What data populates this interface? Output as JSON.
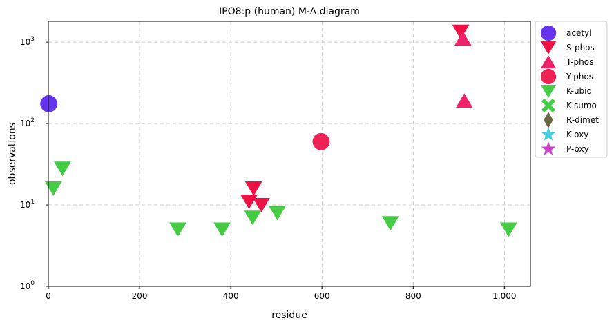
{
  "chart_data": {
    "type": "scatter",
    "title": "IPO8:p (human) M-A diagram",
    "xlabel": "residue",
    "ylabel": "observations",
    "xlim": [
      0,
      1057
    ],
    "ylim": [
      1,
      1800
    ],
    "yscale": "log",
    "grid": true,
    "legend_placement": "outside-right-top",
    "x_ticks": [
      0,
      200,
      400,
      600,
      800,
      1000
    ],
    "x_tick_labels": [
      "0",
      "200",
      "400",
      "600",
      "800",
      "1,000"
    ],
    "y_ticks": [
      1,
      10,
      100,
      1000
    ],
    "series": [
      {
        "name": "acetyl",
        "marker": "circle",
        "color": "#6633ee",
        "points": [
          {
            "x": 1,
            "y": 175
          }
        ]
      },
      {
        "name": "S-phos",
        "marker": "triangle-down",
        "color": "#ee1144",
        "points": [
          {
            "x": 904,
            "y": 1350
          },
          {
            "x": 440,
            "y": 11
          },
          {
            "x": 450,
            "y": 16
          },
          {
            "x": 467,
            "y": 10
          }
        ]
      },
      {
        "name": "T-phos",
        "marker": "triangle-up",
        "color": "#ee2266",
        "points": [
          {
            "x": 909,
            "y": 1100
          },
          {
            "x": 912,
            "y": 190
          }
        ]
      },
      {
        "name": "Y-phos",
        "marker": "circle",
        "color": "#ee2255",
        "points": [
          {
            "x": 598,
            "y": 60
          }
        ]
      },
      {
        "name": "K-ubiq",
        "marker": "triangle-down",
        "color": "#44cc44",
        "points": [
          {
            "x": 11,
            "y": 16
          },
          {
            "x": 31,
            "y": 28
          },
          {
            "x": 284,
            "y": 5
          },
          {
            "x": 381,
            "y": 5
          },
          {
            "x": 448,
            "y": 7
          },
          {
            "x": 502,
            "y": 8
          },
          {
            "x": 750,
            "y": 6
          },
          {
            "x": 1009,
            "y": 5
          }
        ]
      },
      {
        "name": "K-sumo",
        "marker": "x",
        "color": "#44cc44",
        "points": []
      },
      {
        "name": "R-dimet",
        "marker": "diamond",
        "color": "#666644",
        "points": []
      },
      {
        "name": "K-oxy",
        "marker": "star",
        "color": "#44ccdd",
        "points": []
      },
      {
        "name": "P-oxy",
        "marker": "star",
        "color": "#cc44cc",
        "points": []
      }
    ]
  }
}
